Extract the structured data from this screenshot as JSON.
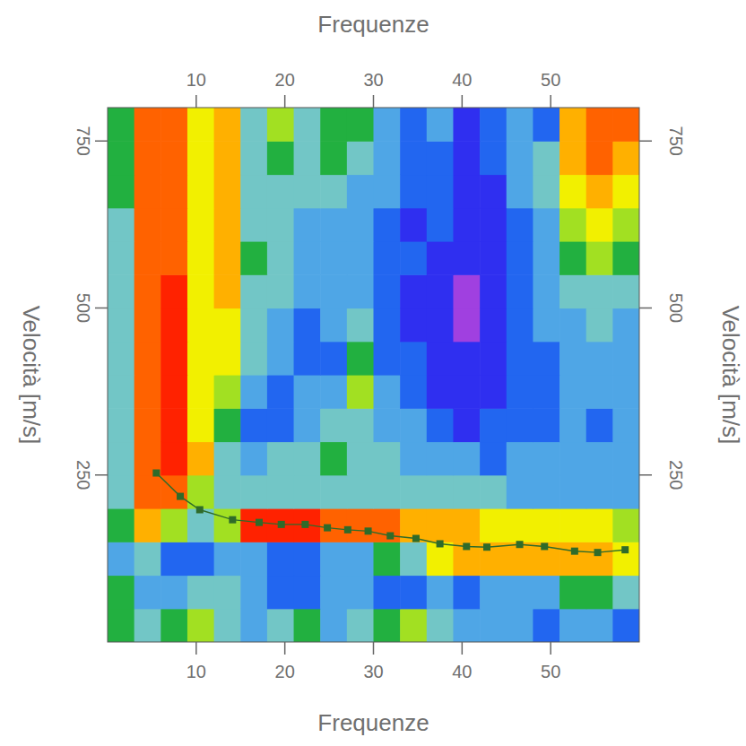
{
  "chart_data": {
    "type": "heatmap",
    "x_label": "Frequenze",
    "y_label": "Velocità [m/s]",
    "xlim": [
      0,
      60
    ],
    "ylim": [
      0,
      800
    ],
    "xticks": [
      10,
      20,
      30,
      40,
      50
    ],
    "yticks": [
      250,
      500,
      750
    ],
    "zlim": [
      0,
      10
    ],
    "z": [
      [
        5,
        4,
        5,
        6,
        4,
        3,
        4,
        5,
        3,
        4,
        5,
        6,
        4,
        3,
        3,
        3,
        2,
        3,
        3,
        2
      ],
      [
        5,
        3,
        3,
        4,
        4,
        3,
        2,
        2,
        3,
        3,
        2,
        2,
        3,
        2,
        3,
        3,
        3,
        5,
        5,
        4
      ],
      [
        3,
        4,
        2,
        2,
        3,
        3,
        2,
        2,
        3,
        3,
        5,
        4,
        7,
        8,
        8,
        8,
        8,
        8,
        8,
        7
      ],
      [
        5,
        8,
        6,
        4,
        6,
        10,
        10,
        10,
        9,
        9,
        9,
        8,
        8,
        8,
        7,
        7,
        7,
        7,
        7,
        6
      ],
      [
        4,
        9,
        9,
        6,
        4,
        4,
        4,
        4,
        4,
        4,
        4,
        4,
        4,
        4,
        4,
        3,
        3,
        3,
        3,
        3
      ],
      [
        4,
        9,
        10,
        8,
        4,
        3,
        4,
        4,
        5,
        4,
        4,
        3,
        3,
        3,
        2,
        3,
        3,
        3,
        3,
        3
      ],
      [
        4,
        9,
        10,
        7,
        5,
        2,
        2,
        3,
        4,
        4,
        3,
        3,
        2,
        1,
        2,
        2,
        2,
        3,
        2,
        3
      ],
      [
        4,
        9,
        10,
        7,
        6,
        3,
        2,
        3,
        3,
        6,
        3,
        2,
        1,
        1,
        1,
        2,
        2,
        3,
        3,
        3
      ],
      [
        4,
        9,
        10,
        7,
        7,
        4,
        3,
        2,
        2,
        5,
        2,
        2,
        1,
        1,
        1,
        2,
        2,
        3,
        3,
        3
      ],
      [
        4,
        9,
        10,
        7,
        7,
        4,
        3,
        2,
        3,
        4,
        2,
        1,
        1,
        0,
        1,
        2,
        3,
        3,
        4,
        3
      ],
      [
        4,
        9,
        10,
        7,
        8,
        4,
        4,
        3,
        3,
        3,
        2,
        1,
        1,
        0,
        1,
        2,
        3,
        4,
        4,
        4
      ],
      [
        4,
        9,
        9,
        7,
        8,
        5,
        4,
        3,
        3,
        3,
        2,
        2,
        1,
        1,
        1,
        2,
        3,
        5,
        6,
        5
      ],
      [
        4,
        9,
        9,
        7,
        8,
        4,
        4,
        3,
        3,
        3,
        2,
        1,
        2,
        1,
        1,
        2,
        3,
        6,
        7,
        6
      ],
      [
        5,
        9,
        9,
        7,
        8,
        4,
        4,
        4,
        4,
        3,
        3,
        2,
        2,
        1,
        1,
        3,
        4,
        7,
        8,
        7
      ],
      [
        5,
        9,
        9,
        7,
        8,
        4,
        5,
        4,
        5,
        4,
        3,
        2,
        2,
        1,
        2,
        3,
        4,
        8,
        9,
        8
      ],
      [
        5,
        9,
        9,
        7,
        8,
        4,
        6,
        4,
        5,
        5,
        3,
        2,
        3,
        1,
        2,
        3,
        2,
        8,
        9,
        9
      ]
    ],
    "series": [
      {
        "type": "line",
        "marker": "square",
        "color": "#2f6b2a",
        "x": [
          5.5,
          8.2,
          10.4,
          14.1,
          17.1,
          19.6,
          22.3,
          24.8,
          27.1,
          29.4,
          31.9,
          34.8,
          37.5,
          40.5,
          42.8,
          46.5,
          49.3,
          52.7,
          55.3,
          58.4
        ],
        "values": [
          253,
          218,
          198,
          183,
          179,
          176,
          176,
          171,
          168,
          166,
          159,
          155,
          147,
          143,
          142,
          146,
          143,
          136,
          134,
          138
        ]
      }
    ]
  }
}
